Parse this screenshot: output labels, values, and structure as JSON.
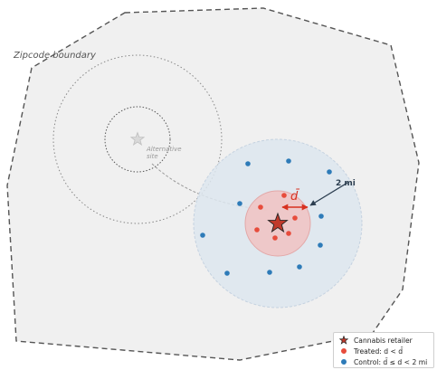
{
  "labels": {
    "zipcode_boundary": "Zipcode boundary",
    "alternative_site_line1": "Alternative",
    "alternative_site_line2": "site",
    "d_bar": "d̄",
    "two_mi": "2 mi"
  },
  "legend": {
    "retailer": "Cannabis retailer",
    "treated": "Treated: d < d̄",
    "control": "Control: d̄ ≤ d < 2 mi"
  },
  "colors": {
    "treated": "#e74c3c",
    "control": "#2e7bb8",
    "retailer": "#c0392b",
    "boundary": "#555555"
  }
}
